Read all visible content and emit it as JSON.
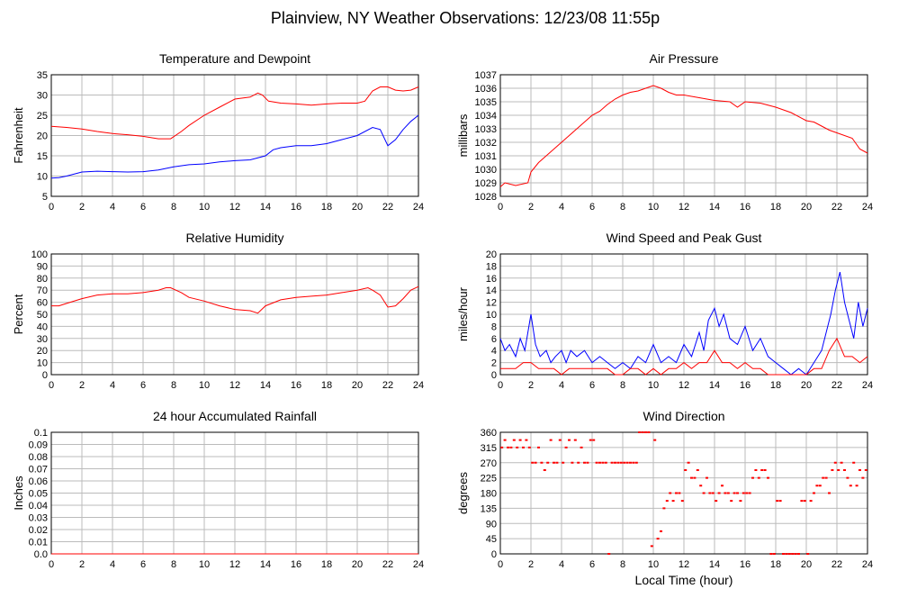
{
  "title": "Plainview, NY Weather Observations: 12/23/08 11:55p",
  "colors": {
    "red": "#ff0000",
    "blue": "#0000ff",
    "grid": "#bbbbbb"
  },
  "chart_data": [
    {
      "type": "line",
      "title": "Temperature and Dewpoint",
      "xlabel": "",
      "ylabel": "Fahrenheit",
      "xlim": [
        0,
        24
      ],
      "ylim": [
        5,
        35
      ],
      "xticks": [
        0,
        2,
        4,
        6,
        8,
        10,
        12,
        14,
        16,
        18,
        20,
        22,
        24
      ],
      "yticks": [
        5,
        10,
        15,
        20,
        25,
        30,
        35
      ],
      "grid": true,
      "series": [
        {
          "color": "#ff0000",
          "x": [
            0,
            1,
            2,
            3,
            4,
            5,
            6,
            7,
            7.8,
            8.5,
            9,
            10,
            11,
            12,
            13,
            13.5,
            13.8,
            14.2,
            15,
            16,
            17,
            18,
            19,
            20,
            20.5,
            21,
            21.5,
            22,
            22.5,
            23,
            23.5,
            24
          ],
          "y": [
            22.3,
            22,
            21.6,
            21,
            20.5,
            20.2,
            19.8,
            19.2,
            19.2,
            21,
            22.5,
            25,
            27,
            29,
            29.5,
            30.5,
            30,
            28.5,
            28,
            27.8,
            27.5,
            27.8,
            28,
            28,
            28.5,
            31,
            32,
            32,
            31.2,
            31,
            31.2,
            32
          ]
        },
        {
          "color": "#0000ff",
          "x": [
            0,
            0.5,
            1,
            2,
            3,
            4,
            5,
            6,
            7,
            8,
            9,
            10,
            11,
            12,
            13,
            14,
            14.5,
            15,
            16,
            17,
            18,
            19,
            20,
            21,
            21.5,
            22,
            22.5,
            23,
            23.5,
            24
          ],
          "y": [
            9.5,
            9.6,
            10,
            11,
            11.2,
            11.1,
            11,
            11.1,
            11.5,
            12.3,
            12.8,
            13,
            13.5,
            13.8,
            14,
            15,
            16.5,
            17,
            17.5,
            17.5,
            18,
            19,
            20,
            22,
            21.5,
            17.5,
            19,
            21.5,
            23.5,
            25
          ]
        }
      ]
    },
    {
      "type": "line",
      "title": "Air Pressure",
      "xlabel": "",
      "ylabel": "millibars",
      "xlim": [
        0,
        24
      ],
      "ylim": [
        1028,
        1037
      ],
      "xticks": [
        0,
        2,
        4,
        6,
        8,
        10,
        12,
        14,
        16,
        18,
        20,
        22,
        24
      ],
      "yticks": [
        1028,
        1029,
        1030,
        1031,
        1032,
        1033,
        1034,
        1035,
        1036,
        1037
      ],
      "grid": true,
      "series": [
        {
          "color": "#ff0000",
          "x": [
            0,
            0.3,
            1,
            1.8,
            2,
            2.5,
            3,
            3.5,
            4,
            4.5,
            5,
            5.5,
            6,
            6.5,
            7,
            7.5,
            8,
            8.5,
            9,
            9.5,
            10,
            10.5,
            11,
            11.5,
            12,
            13,
            14,
            15,
            15.5,
            16,
            17,
            18,
            19,
            20,
            20.5,
            21,
            21.5,
            22,
            23,
            23.5,
            24
          ],
          "y": [
            1028.7,
            1029,
            1028.8,
            1029,
            1029.8,
            1030.5,
            1031,
            1031.5,
            1032,
            1032.5,
            1033,
            1033.5,
            1034,
            1034.3,
            1034.8,
            1035.2,
            1035.5,
            1035.7,
            1035.8,
            1036,
            1036.2,
            1036,
            1035.7,
            1035.5,
            1035.5,
            1035.3,
            1035.1,
            1035,
            1034.6,
            1035,
            1034.9,
            1034.6,
            1034.2,
            1033.6,
            1033.5,
            1033.2,
            1032.9,
            1032.7,
            1032.3,
            1031.5,
            1031.2
          ]
        }
      ]
    },
    {
      "type": "line",
      "title": "Relative Humidity",
      "xlabel": "",
      "ylabel": "Percent",
      "xlim": [
        0,
        24
      ],
      "ylim": [
        0,
        100
      ],
      "xticks": [
        0,
        2,
        4,
        6,
        8,
        10,
        12,
        14,
        16,
        18,
        20,
        22,
        24
      ],
      "yticks": [
        0,
        10,
        20,
        30,
        40,
        50,
        60,
        70,
        80,
        90,
        100
      ],
      "grid": true,
      "series": [
        {
          "color": "#ff0000",
          "x": [
            0,
            0.5,
            1,
            2,
            3,
            4,
            5,
            6,
            7,
            7.5,
            7.8,
            8.5,
            9,
            10,
            11,
            12,
            13,
            13.5,
            14,
            15,
            16,
            17,
            18,
            19,
            20,
            20.7,
            21,
            21.5,
            22,
            22.5,
            23,
            23.5,
            24
          ],
          "y": [
            57,
            57,
            59,
            63,
            66,
            67,
            67,
            68,
            70,
            72,
            72,
            68,
            64,
            61,
            57,
            54,
            53,
            51,
            57,
            62,
            64,
            65,
            66,
            68,
            70,
            72,
            70,
            66,
            56,
            57,
            63,
            70,
            73
          ]
        }
      ]
    },
    {
      "type": "line",
      "title": "Wind Speed and Peak Gust",
      "xlabel": "",
      "ylabel": "miles/hour",
      "xlim": [
        0,
        24
      ],
      "ylim": [
        0,
        20
      ],
      "xticks": [
        0,
        2,
        4,
        6,
        8,
        10,
        12,
        14,
        16,
        18,
        20,
        22,
        24
      ],
      "yticks": [
        0,
        2,
        4,
        6,
        8,
        10,
        12,
        14,
        16,
        18,
        20
      ],
      "grid": true,
      "series": [
        {
          "color": "#0000ff",
          "x": [
            0,
            0.3,
            0.6,
            1,
            1.3,
            1.6,
            2,
            2.3,
            2.6,
            3,
            3.3,
            3.6,
            4,
            4.3,
            4.6,
            5,
            5.5,
            6,
            6.5,
            7,
            7.5,
            8,
            8.5,
            9,
            9.5,
            10,
            10.5,
            11,
            11.5,
            12,
            12.5,
            13,
            13.3,
            13.6,
            14,
            14.3,
            14.6,
            15,
            15.5,
            16,
            16.5,
            17,
            17.5,
            18,
            18.5,
            19,
            19.5,
            20,
            20.5,
            21,
            21.3,
            21.6,
            21.9,
            22.2,
            22.5,
            22.8,
            23.1,
            23.4,
            23.7,
            24
          ],
          "y": [
            6,
            4,
            5,
            3,
            6,
            4,
            10,
            5,
            3,
            4,
            2,
            3,
            4,
            2,
            4,
            3,
            4,
            2,
            3,
            2,
            1,
            2,
            1,
            3,
            2,
            5,
            2,
            3,
            2,
            5,
            3,
            7,
            4,
            9,
            11,
            8,
            10,
            6,
            5,
            8,
            4,
            6,
            3,
            2,
            1,
            0,
            1,
            0,
            2,
            4,
            7,
            10,
            14,
            17,
            12,
            9,
            6,
            12,
            8,
            11
          ]
        },
        {
          "color": "#ff0000",
          "x": [
            0,
            0.5,
            1,
            1.5,
            2,
            2.5,
            3,
            3.5,
            4,
            4.5,
            5,
            5.5,
            6,
            6.5,
            7,
            7.5,
            8,
            8.5,
            9,
            9.5,
            10,
            10.5,
            11,
            11.5,
            12,
            12.5,
            13,
            13.5,
            14,
            14.5,
            15,
            15.5,
            16,
            16.5,
            17,
            17.5,
            18,
            19,
            20,
            20.5,
            21,
            21.5,
            22,
            22.5,
            23,
            23.5,
            24
          ],
          "y": [
            1,
            1,
            1,
            2,
            2,
            1,
            1,
            1,
            0,
            1,
            1,
            1,
            1,
            1,
            1,
            0,
            0,
            1,
            1,
            0,
            1,
            0,
            1,
            1,
            2,
            1,
            2,
            2,
            4,
            2,
            2,
            1,
            2,
            1,
            1,
            0,
            0,
            0,
            0,
            1,
            1,
            4,
            6,
            3,
            3,
            2,
            3
          ]
        }
      ]
    },
    {
      "type": "line",
      "title": "24 hour Accumulated Rainfall",
      "xlabel": "",
      "ylabel": "Inches",
      "xlim": [
        0,
        24
      ],
      "ylim": [
        0,
        0.1
      ],
      "xticks": [
        0,
        2,
        4,
        6,
        8,
        10,
        12,
        14,
        16,
        18,
        20,
        22,
        24
      ],
      "yticks": [
        0,
        0.01,
        0.02,
        0.03,
        0.04,
        0.05,
        0.06,
        0.07,
        0.08,
        0.09,
        0.1
      ],
      "ytick_labels": [
        "0.0",
        "0.01",
        "0.02",
        "0.03",
        "0.04",
        "0.05",
        "0.06",
        "0.07",
        "0.08",
        "0.09",
        "0.1"
      ],
      "grid": true,
      "series": [
        {
          "color": "#ff0000",
          "x": [
            0,
            24
          ],
          "y": [
            0,
            0
          ]
        }
      ]
    },
    {
      "type": "scatter",
      "title": "Wind Direction",
      "xlabel": "Local Time (hour)",
      "ylabel": "degrees",
      "xlim": [
        0,
        24
      ],
      "ylim": [
        0,
        360
      ],
      "xticks": [
        0,
        2,
        4,
        6,
        8,
        10,
        12,
        14,
        16,
        18,
        20,
        22,
        24
      ],
      "yticks": [
        0,
        45,
        90,
        135,
        180,
        225,
        270,
        315,
        360
      ],
      "grid": true,
      "series": [
        {
          "color": "#ff0000",
          "x": [
            0.1,
            0.3,
            0.5,
            0.7,
            0.9,
            1.1,
            1.3,
            1.5,
            1.7,
            1.9,
            2.1,
            2.3,
            2.5,
            2.7,
            2.9,
            3.1,
            3.3,
            3.5,
            3.7,
            3.9,
            4.1,
            4.3,
            4.5,
            4.7,
            4.9,
            5.1,
            5.3,
            5.5,
            5.7,
            5.9,
            6.1,
            6.3,
            6.5,
            6.7,
            6.9,
            7.1,
            7.3,
            7.5,
            7.7,
            7.9,
            8.1,
            8.3,
            8.5,
            8.7,
            8.9,
            9.1,
            9.3,
            9.5,
            9.7,
            9.9,
            10.1,
            10.3,
            10.5,
            10.7,
            10.9,
            11.1,
            11.3,
            11.5,
            11.7,
            11.9,
            12.1,
            12.3,
            12.5,
            12.7,
            12.9,
            13.1,
            13.3,
            13.5,
            13.7,
            13.9,
            14.1,
            14.3,
            14.5,
            14.7,
            14.9,
            15.1,
            15.3,
            15.5,
            15.7,
            15.9,
            16.1,
            16.3,
            16.5,
            16.7,
            16.9,
            17.1,
            17.3,
            17.5,
            17.7,
            17.9,
            18.1,
            18.3,
            18.5,
            18.7,
            18.9,
            19.1,
            19.3,
            19.5,
            19.7,
            19.9,
            20.1,
            20.3,
            20.5,
            20.7,
            20.9,
            21.1,
            21.3,
            21.5,
            21.7,
            21.9,
            22.1,
            22.3,
            22.5,
            22.7,
            22.9,
            23.1,
            23.3,
            23.5,
            23.7,
            23.9
          ],
          "y": [
            315,
            337,
            315,
            315,
            337,
            315,
            337,
            315,
            337,
            315,
            270,
            270,
            315,
            270,
            248,
            270,
            337,
            270,
            270,
            337,
            270,
            315,
            337,
            270,
            337,
            270,
            315,
            270,
            270,
            337,
            337,
            270,
            270,
            270,
            270,
            0,
            270,
            270,
            270,
            270,
            270,
            270,
            270,
            270,
            270,
            360,
            360,
            360,
            360,
            23,
            337,
            45,
            67,
            135,
            157,
            180,
            157,
            180,
            180,
            157,
            248,
            270,
            225,
            225,
            248,
            202,
            180,
            225,
            180,
            180,
            157,
            180,
            202,
            180,
            180,
            157,
            180,
            180,
            157,
            180,
            180,
            180,
            225,
            248,
            225,
            248,
            248,
            225,
            0,
            0,
            157,
            157,
            0,
            0,
            0,
            0,
            0,
            0,
            157,
            157,
            0,
            157,
            180,
            202,
            202,
            225,
            225,
            180,
            248,
            270,
            248,
            270,
            248,
            225,
            202,
            270,
            202,
            248,
            225,
            248
          ]
        }
      ]
    }
  ]
}
